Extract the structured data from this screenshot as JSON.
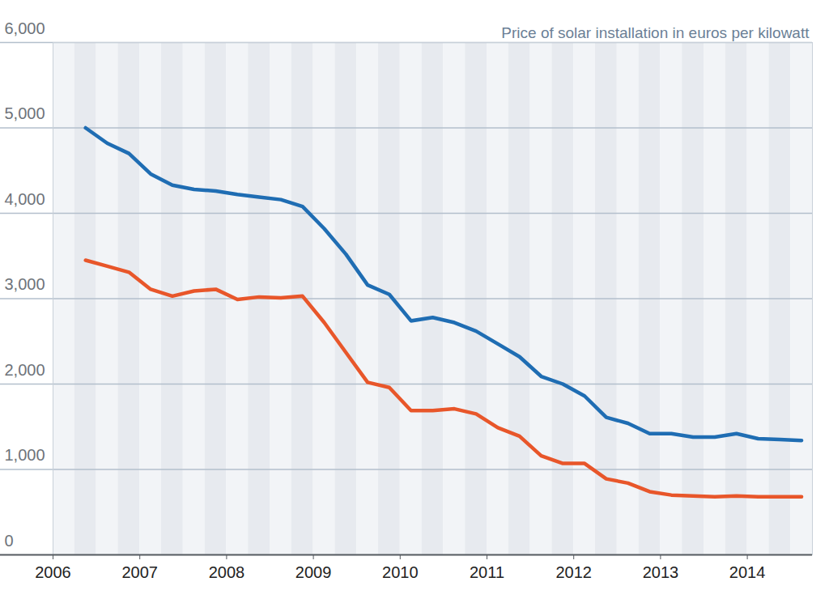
{
  "chart_data": {
    "type": "line",
    "title": "Price of solar installation in euros per kilowatt",
    "x": [
      2006.375,
      2006.625,
      2006.875,
      2007.125,
      2007.375,
      2007.625,
      2007.875,
      2008.125,
      2008.375,
      2008.625,
      2008.875,
      2009.125,
      2009.375,
      2009.625,
      2009.875,
      2010.125,
      2010.375,
      2010.625,
      2010.875,
      2011.125,
      2011.375,
      2011.625,
      2011.875,
      2012.125,
      2012.375,
      2012.625,
      2012.875,
      2013.125,
      2013.375,
      2013.625,
      2013.875,
      2014.125,
      2014.375,
      2014.625
    ],
    "series": [
      {
        "color": "#1f6db3",
        "values": [
          5000,
          4820,
          4700,
          4460,
          4330,
          4280,
          4260,
          4220,
          4190,
          4160,
          4080,
          3820,
          3520,
          3160,
          3050,
          2740,
          2780,
          2720,
          2620,
          2470,
          2320,
          2090,
          2000,
          1860,
          1610,
          1540,
          1420,
          1420,
          1380,
          1380,
          1420,
          1360,
          1350,
          1340
        ]
      },
      {
        "color": "#e8562a",
        "values": [
          3450,
          3380,
          3310,
          3110,
          3030,
          3090,
          3110,
          2990,
          3020,
          3010,
          3030,
          2720,
          2370,
          2020,
          1960,
          1690,
          1690,
          1710,
          1650,
          1490,
          1390,
          1160,
          1070,
          1070,
          890,
          840,
          740,
          700,
          690,
          680,
          690,
          680,
          680,
          680
        ]
      }
    ],
    "xlim": [
      2006,
      2014.75
    ],
    "xticks": [
      2006,
      2007,
      2008,
      2009,
      2010,
      2011,
      2012,
      2013,
      2014
    ],
    "ylim": [
      0,
      6000
    ],
    "yticks": [
      0,
      {
        "value": 1000,
        "label": "1,000"
      },
      {
        "value": 2000,
        "label": "2,000"
      },
      {
        "value": 3000,
        "label": "3,000"
      },
      {
        "value": 4000,
        "label": "4,000"
      },
      {
        "value": 5000,
        "label": "5,000"
      },
      {
        "value": 6000,
        "label": "6,000"
      }
    ],
    "grid": true
  }
}
